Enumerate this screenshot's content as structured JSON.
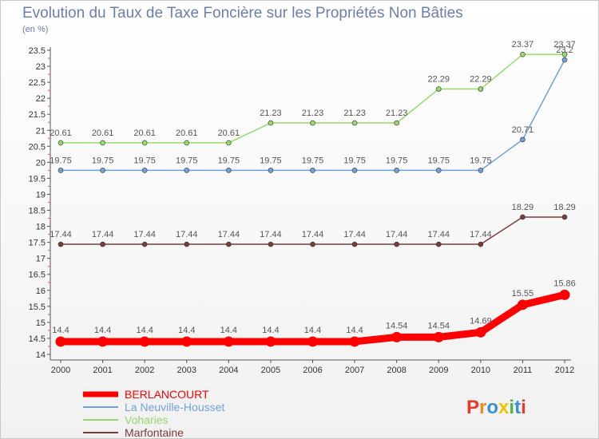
{
  "header": {
    "title": "Evolution du Taux de Taxe Foncière sur les Propriétés Non Bâties",
    "unit": "(en %)"
  },
  "logo": {
    "letters": [
      "P",
      "r",
      "o",
      "x",
      "i",
      "t",
      "i"
    ],
    "colors": [
      "#e8392a",
      "#f08c1a",
      "#3b8fd6",
      "#f3c300",
      "#4cb648",
      "#3b8fd6",
      "#e8392a"
    ]
  },
  "chart_data": {
    "type": "line",
    "x": [
      "2000",
      "2001",
      "2002",
      "2003",
      "2004",
      "2005",
      "2006",
      "2007",
      "2008",
      "2009",
      "2010",
      "2011",
      "2012"
    ],
    "ylim": [
      14,
      23.5
    ],
    "yticks": [
      "14",
      "14.5",
      "15",
      "15.5",
      "16",
      "16.5",
      "17",
      "17.5",
      "18",
      "18.5",
      "19",
      "19.5",
      "20",
      "20.5",
      "21",
      "21.5",
      "22",
      "22.5",
      "23",
      "23.5"
    ],
    "grid": false,
    "legend": "bottom-left",
    "series": [
      {
        "name": "BERLANCOURT",
        "color": "#ff0000",
        "emphasis": true,
        "values": [
          14.4,
          14.4,
          14.4,
          14.4,
          14.4,
          14.4,
          14.4,
          14.4,
          14.54,
          14.54,
          14.69,
          15.55,
          15.86
        ],
        "labels": [
          "14.4",
          "14.4",
          "14.4",
          "14.4",
          "14.4",
          "14.4",
          "14.4",
          "14.4",
          "14.54",
          "14.54",
          "14.69",
          "15.55",
          "15.86"
        ]
      },
      {
        "name": "La Neuville-Housset",
        "color": "#6fa3d8",
        "values": [
          19.75,
          19.75,
          19.75,
          19.75,
          19.75,
          19.75,
          19.75,
          19.75,
          19.75,
          19.75,
          19.75,
          20.71,
          23.2
        ],
        "labels": [
          "19.75",
          "19.75",
          "19.75",
          "19.75",
          "19.75",
          "19.75",
          "19.75",
          "19.75",
          "19.75",
          "19.75",
          "19.75",
          "20.71",
          "23.2"
        ]
      },
      {
        "name": "Voharies",
        "color": "#97d96b",
        "values": [
          20.61,
          20.61,
          20.61,
          20.61,
          20.61,
          21.23,
          21.23,
          21.23,
          21.23,
          22.29,
          22.29,
          23.37,
          23.37
        ],
        "labels": [
          "20.61",
          "20.61",
          "20.61",
          "20.61",
          "20.61",
          "21.23",
          "21.23",
          "21.23",
          "21.23",
          "22.29",
          "22.29",
          "23.37",
          "23.37"
        ]
      },
      {
        "name": "Marfontaine",
        "color": "#7a3b3b",
        "values": [
          17.44,
          17.44,
          17.44,
          17.44,
          17.44,
          17.44,
          17.44,
          17.44,
          17.44,
          17.44,
          17.44,
          18.29,
          18.29
        ],
        "labels": [
          "17.44",
          "17.44",
          "17.44",
          "17.44",
          "17.44",
          "17.44",
          "17.44",
          "17.44",
          "17.44",
          "17.44",
          "17.44",
          "18.29",
          "18.29"
        ]
      }
    ]
  }
}
